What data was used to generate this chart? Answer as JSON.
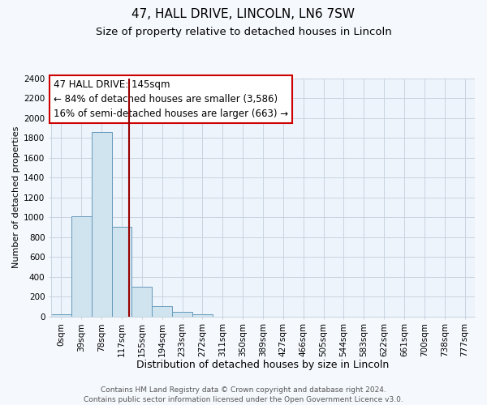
{
  "title": "47, HALL DRIVE, LINCOLN, LN6 7SW",
  "subtitle": "Size of property relative to detached houses in Lincoln",
  "xlabel": "Distribution of detached houses by size in Lincoln",
  "ylabel": "Number of detached properties",
  "bar_labels": [
    "0sqm",
    "39sqm",
    "78sqm",
    "117sqm",
    "155sqm",
    "194sqm",
    "233sqm",
    "272sqm",
    "311sqm",
    "350sqm",
    "389sqm",
    "427sqm",
    "466sqm",
    "505sqm",
    "544sqm",
    "583sqm",
    "622sqm",
    "661sqm",
    "700sqm",
    "738sqm",
    "777sqm"
  ],
  "bar_values": [
    20,
    1010,
    1860,
    900,
    300,
    100,
    45,
    20,
    0,
    0,
    0,
    0,
    0,
    0,
    0,
    0,
    0,
    0,
    0,
    0,
    0
  ],
  "bar_color": "#d0e4f0",
  "bar_edgecolor": "#6699bb",
  "plot_bg_color": "#eef4fb",
  "fig_bg_color": "#f5f8fc",
  "grid_color": "#c8d4e0",
  "vline_x": 3.85,
  "vline_color": "#990000",
  "annotation_title": "47 HALL DRIVE: 145sqm",
  "annotation_line1": "← 84% of detached houses are smaller (3,586)",
  "annotation_line2": "16% of semi-detached houses are larger (663) →",
  "annotation_box_facecolor": "#ffffff",
  "annotation_box_edgecolor": "#cc0000",
  "ylim": [
    0,
    2400
  ],
  "yticks": [
    0,
    200,
    400,
    600,
    800,
    1000,
    1200,
    1400,
    1600,
    1800,
    2000,
    2200,
    2400
  ],
  "footer1": "Contains HM Land Registry data © Crown copyright and database right 2024.",
  "footer2": "Contains public sector information licensed under the Open Government Licence v3.0.",
  "title_fontsize": 11,
  "subtitle_fontsize": 9.5,
  "xlabel_fontsize": 9,
  "ylabel_fontsize": 8,
  "tick_fontsize": 7.5,
  "annotation_fontsize": 8.5,
  "footer_fontsize": 6.5
}
